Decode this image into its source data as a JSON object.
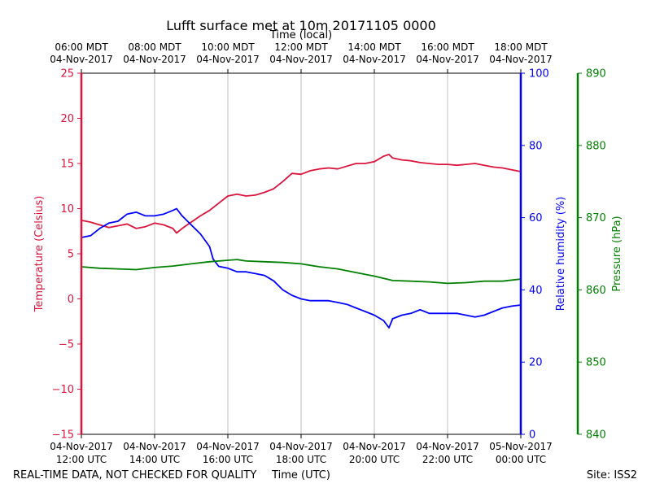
{
  "chart_data": {
    "type": "line",
    "title": "Lufft surface met at 10m 20171105 0000",
    "top_axis_label": "Time (local)",
    "xlabel": "Time (UTC)",
    "footer_left": "REAL-TIME DATA, NOT CHECKED FOR QUALITY",
    "footer_right": "Site: ISS2",
    "x_range_hours_utc": [
      12,
      24
    ],
    "bottom_ticks": [
      {
        "hour": 12,
        "line1": "04-Nov-2017",
        "line2": "12:00 UTC"
      },
      {
        "hour": 14,
        "line1": "04-Nov-2017",
        "line2": "14:00 UTC"
      },
      {
        "hour": 16,
        "line1": "04-Nov-2017",
        "line2": "16:00 UTC"
      },
      {
        "hour": 18,
        "line1": "04-Nov-2017",
        "line2": "18:00 UTC"
      },
      {
        "hour": 20,
        "line1": "04-Nov-2017",
        "line2": "20:00 UTC"
      },
      {
        "hour": 22,
        "line1": "04-Nov-2017",
        "line2": "22:00 UTC"
      },
      {
        "hour": 24,
        "line1": "05-Nov-2017",
        "line2": "00:00 UTC"
      }
    ],
    "top_ticks": [
      {
        "hour": 12,
        "line1": "06:00 MDT",
        "line2": "04-Nov-2017"
      },
      {
        "hour": 14,
        "line1": "08:00 MDT",
        "line2": "04-Nov-2017"
      },
      {
        "hour": 16,
        "line1": "10:00 MDT",
        "line2": "04-Nov-2017"
      },
      {
        "hour": 18,
        "line1": "12:00 MDT",
        "line2": "04-Nov-2017"
      },
      {
        "hour": 20,
        "line1": "14:00 MDT",
        "line2": "04-Nov-2017"
      },
      {
        "hour": 22,
        "line1": "16:00 MDT",
        "line2": "04-Nov-2017"
      },
      {
        "hour": 24,
        "line1": "18:00 MDT",
        "line2": "04-Nov-2017"
      }
    ],
    "axes": {
      "temperature": {
        "label": "Temperature (Celsius)",
        "range": [
          -15,
          25
        ],
        "ticks": [
          -15,
          -10,
          -5,
          0,
          5,
          10,
          15,
          20,
          25
        ],
        "tick_labels": [
          "−15",
          "−10",
          "−5",
          "0",
          "5",
          "10",
          "15",
          "20",
          "25"
        ],
        "color": "#dc143c"
      },
      "humidity": {
        "label": "Relative humidity (%)",
        "range": [
          0,
          100
        ],
        "ticks": [
          0,
          20,
          40,
          60,
          80,
          100
        ],
        "tick_labels": [
          "0",
          "20",
          "40",
          "60",
          "80",
          "100"
        ],
        "color": "#0000ff"
      },
      "pressure": {
        "label": "Pressure (hPa)",
        "range": [
          840,
          890
        ],
        "ticks": [
          840,
          850,
          860,
          870,
          880,
          890
        ],
        "tick_labels": [
          "840",
          "850",
          "860",
          "870",
          "880",
          "890"
        ],
        "color": "#008000"
      }
    },
    "series": [
      {
        "name": "Temperature",
        "axis": "temperature",
        "x": [
          12.0,
          12.25,
          12.5,
          12.75,
          13.0,
          13.25,
          13.5,
          13.75,
          14.0,
          14.25,
          14.5,
          14.6,
          14.75,
          15.0,
          15.25,
          15.5,
          15.75,
          16.0,
          16.25,
          16.5,
          16.75,
          17.0,
          17.25,
          17.5,
          17.75,
          18.0,
          18.25,
          18.5,
          18.75,
          19.0,
          19.25,
          19.5,
          19.75,
          20.0,
          20.25,
          20.4,
          20.5,
          20.75,
          21.0,
          21.25,
          21.5,
          21.75,
          22.0,
          22.25,
          22.5,
          22.75,
          23.0,
          23.25,
          23.5,
          23.75,
          24.0
        ],
        "y": [
          8.7,
          8.5,
          8.2,
          7.9,
          8.1,
          8.3,
          7.8,
          8.0,
          8.4,
          8.2,
          7.8,
          7.3,
          7.8,
          8.5,
          9.2,
          9.8,
          10.6,
          11.4,
          11.6,
          11.4,
          11.5,
          11.8,
          12.2,
          13.0,
          13.9,
          13.8,
          14.2,
          14.4,
          14.5,
          14.4,
          14.7,
          15.0,
          15.0,
          15.2,
          15.8,
          16.0,
          15.6,
          15.4,
          15.3,
          15.1,
          15.0,
          14.9,
          14.9,
          14.8,
          14.9,
          15.0,
          14.8,
          14.6,
          14.5,
          14.3,
          14.1
        ]
      },
      {
        "name": "Relative humidity",
        "axis": "humidity",
        "x": [
          12.0,
          12.25,
          12.5,
          12.75,
          13.0,
          13.25,
          13.5,
          13.75,
          14.0,
          14.25,
          14.5,
          14.6,
          14.75,
          15.0,
          15.25,
          15.5,
          15.6,
          15.75,
          16.0,
          16.25,
          16.5,
          16.75,
          17.0,
          17.25,
          17.5,
          17.75,
          18.0,
          18.25,
          18.5,
          18.75,
          19.0,
          19.25,
          19.5,
          19.75,
          20.0,
          20.25,
          20.4,
          20.5,
          20.75,
          21.0,
          21.25,
          21.5,
          21.75,
          22.0,
          22.25,
          22.5,
          22.75,
          23.0,
          23.25,
          23.5,
          23.75,
          24.0
        ],
        "y": [
          54.5,
          55.0,
          57.0,
          58.5,
          59.0,
          61.0,
          61.5,
          60.5,
          60.5,
          61.0,
          62.0,
          62.5,
          60.5,
          58.0,
          55.5,
          52.0,
          48.5,
          46.5,
          46.0,
          45.0,
          45.0,
          44.5,
          44.0,
          42.5,
          40.0,
          38.5,
          37.5,
          37.0,
          37.0,
          37.0,
          36.5,
          36.0,
          35.0,
          34.0,
          33.0,
          31.5,
          29.5,
          32.0,
          33.0,
          33.5,
          34.5,
          33.5,
          33.5,
          33.5,
          33.5,
          33.0,
          32.5,
          33.0,
          34.0,
          35.0,
          35.5,
          35.8
        ]
      },
      {
        "name": "Pressure",
        "axis": "pressure",
        "x": [
          12.0,
          12.5,
          13.0,
          13.5,
          14.0,
          14.5,
          15.0,
          15.5,
          16.0,
          16.25,
          16.5,
          17.0,
          17.5,
          18.0,
          18.5,
          19.0,
          19.5,
          20.0,
          20.5,
          21.0,
          21.5,
          22.0,
          22.5,
          23.0,
          23.5,
          24.0
        ],
        "y": [
          863.2,
          863.0,
          862.9,
          862.8,
          863.1,
          863.3,
          863.6,
          863.9,
          864.1,
          864.2,
          864.0,
          863.9,
          863.8,
          863.6,
          863.2,
          862.9,
          862.4,
          861.9,
          861.3,
          861.2,
          861.1,
          860.9,
          861.0,
          861.2,
          861.2,
          861.5
        ]
      }
    ]
  }
}
